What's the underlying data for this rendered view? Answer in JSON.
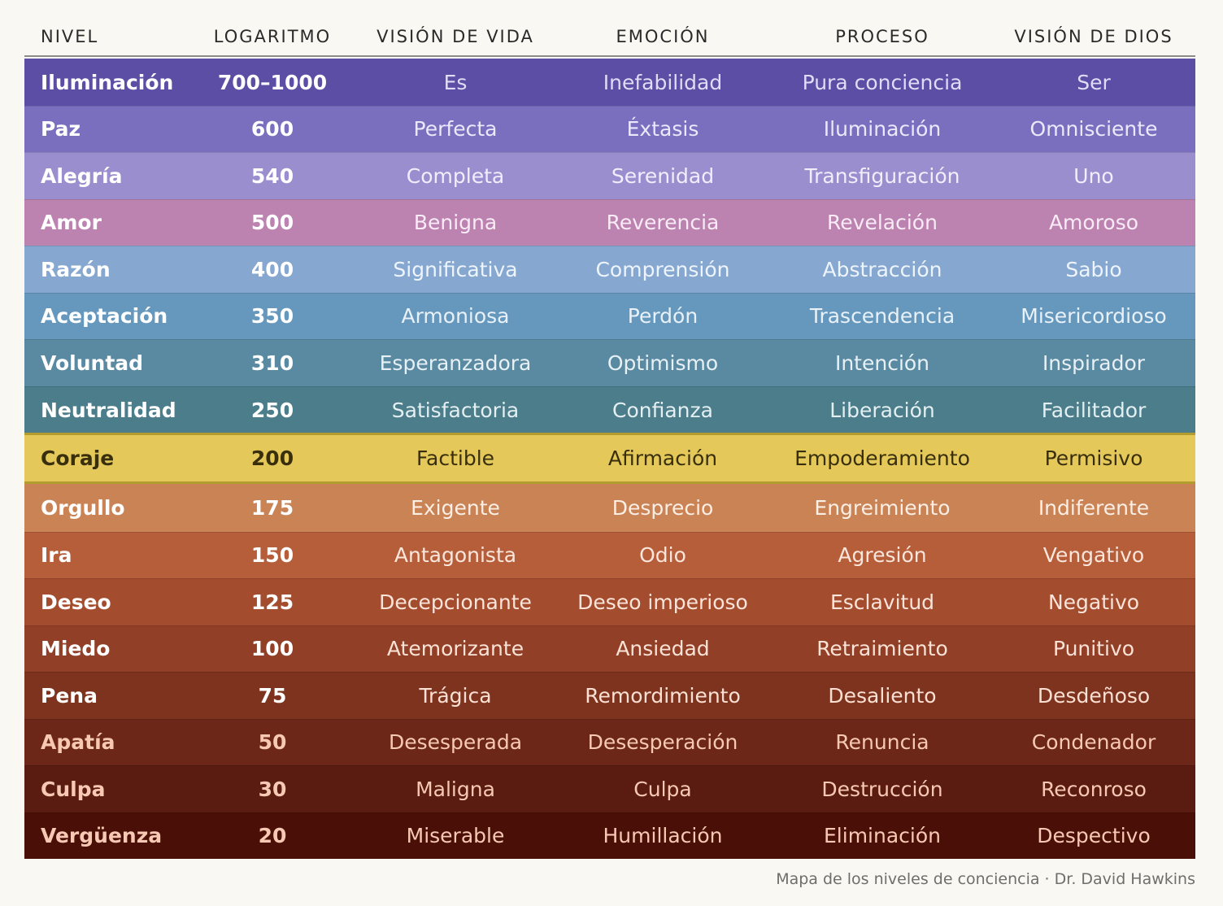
{
  "chart_data": {
    "type": "table",
    "columns": [
      "NIVEL",
      "LOGARITMO",
      "VISIÓN DE VIDA",
      "EMOCIÓN",
      "PROCESO",
      "VISIÓN DE DIOS"
    ],
    "rows": [
      {
        "nivel": "Iluminación",
        "logaritmo": "700–1000",
        "vision_vida": "Es",
        "emocion": "Inefabilidad",
        "proceso": "Pura conciencia",
        "vision_dios": "Ser",
        "bg": "#5b4ea4",
        "fg": "#ffffff",
        "fg2": "#e0dcf6"
      },
      {
        "nivel": "Paz",
        "logaritmo": "600",
        "vision_vida": "Perfecta",
        "emocion": "Éxtasis",
        "proceso": "Iluminación",
        "vision_dios": "Omnisciente",
        "bg": "#7a6fbf",
        "fg": "#ffffff",
        "fg2": "#ebe8fb"
      },
      {
        "nivel": "Alegría",
        "logaritmo": "540",
        "vision_vida": "Completa",
        "emocion": "Serenidad",
        "proceso": "Transfiguración",
        "vision_dios": "Uno",
        "bg": "#9a8ecf",
        "fg": "#ffffff",
        "fg2": "#f1eefc"
      },
      {
        "nivel": "Amor",
        "logaritmo": "500",
        "vision_vida": "Benigna",
        "emocion": "Reverencia",
        "proceso": "Revelación",
        "vision_dios": "Amoroso",
        "bg": "#bc82b0",
        "fg": "#ffffff",
        "fg2": "#f8ebf5"
      },
      {
        "nivel": "Razón",
        "logaritmo": "400",
        "vision_vida": "Significativa",
        "emocion": "Comprensión",
        "proceso": "Abstracción",
        "vision_dios": "Sabio",
        "bg": "#86a8d0",
        "fg": "#ffffff",
        "fg2": "#eef4fb"
      },
      {
        "nivel": "Aceptación",
        "logaritmo": "350",
        "vision_vida": "Armoniosa",
        "emocion": "Perdón",
        "proceso": "Trascendencia",
        "vision_dios": "Misericordioso",
        "bg": "#6698bd",
        "fg": "#ffffff",
        "fg2": "#e8f1f8"
      },
      {
        "nivel": "Voluntad",
        "logaritmo": "310",
        "vision_vida": "Esperanzadora",
        "emocion": "Optimismo",
        "proceso": "Intención",
        "vision_dios": "Inspirador",
        "bg": "#5a8aa2",
        "fg": "#ffffff",
        "fg2": "#e6f0f5"
      },
      {
        "nivel": "Neutralidad",
        "logaritmo": "250",
        "vision_vida": "Satisfactoria",
        "emocion": "Confianza",
        "proceso": "Liberación",
        "vision_dios": "Facilitador",
        "bg": "#4b7d8a",
        "fg": "#ffffff",
        "fg2": "#e4eff2"
      },
      {
        "nivel": "Coraje",
        "logaritmo": "200",
        "vision_vida": "Factible",
        "emocion": "Afirmación",
        "proceso": "Empoderamiento",
        "vision_dios": "Permisivo",
        "bg": "#e4c95a",
        "fg": "#3a2f0c",
        "fg2": "#3a2f0c"
      },
      {
        "nivel": "Orgullo",
        "logaritmo": "175",
        "vision_vida": "Exigente",
        "emocion": "Desprecio",
        "proceso": "Engreimiento",
        "vision_dios": "Indiferente",
        "bg": "#c98355",
        "fg": "#ffffff",
        "fg2": "#fbeee4"
      },
      {
        "nivel": "Ira",
        "logaritmo": "150",
        "vision_vida": "Antagonista",
        "emocion": "Odio",
        "proceso": "Agresión",
        "vision_dios": "Vengativo",
        "bg": "#b65d3a",
        "fg": "#ffffff",
        "fg2": "#fbe6dc"
      },
      {
        "nivel": "Deseo",
        "logaritmo": "125",
        "vision_vida": "Decepcionante",
        "emocion": "Deseo imperioso",
        "proceso": "Esclavitud",
        "vision_dios": "Negativo",
        "bg": "#a44c2e",
        "fg": "#ffffff",
        "fg2": "#fbe4da"
      },
      {
        "nivel": "Miedo",
        "logaritmo": "100",
        "vision_vida": "Atemorizante",
        "emocion": "Ansiedad",
        "proceso": "Retraimiento",
        "vision_dios": "Punitivo",
        "bg": "#913f26",
        "fg": "#ffffff",
        "fg2": "#fbe2d6"
      },
      {
        "nivel": "Pena",
        "logaritmo": "75",
        "vision_vida": "Trágica",
        "emocion": "Remordimiento",
        "proceso": "Desaliento",
        "vision_dios": "Desdeñoso",
        "bg": "#7d331e",
        "fg": "#ffffff",
        "fg2": "#fbe0d3"
      },
      {
        "nivel": "Apatía",
        "logaritmo": "50",
        "vision_vida": "Desesperada",
        "emocion": "Desesperación",
        "proceso": "Renuncia",
        "vision_dios": "Condenador",
        "bg": "#6d2718",
        "fg": "#f7c9b4",
        "fg2": "#f7c9b4"
      },
      {
        "nivel": "Culpa",
        "logaritmo": "30",
        "vision_vida": "Maligna",
        "emocion": "Culpa",
        "proceso": "Destrucción",
        "vision_dios": "Reconroso",
        "bg": "#5a1c10",
        "fg": "#f7c9b4",
        "fg2": "#f7c9b4"
      },
      {
        "nivel": "Vergüenza",
        "logaritmo": "20",
        "vision_vida": "Miserable",
        "emocion": "Humillación",
        "proceso": "Eliminación",
        "vision_dios": "Despectivo",
        "bg": "#4a0f06",
        "fg": "#f7c9b4",
        "fg2": "#f7c9b4"
      }
    ]
  },
  "caption": "Mapa de los niveles de conciencia · Dr. David Hawkins"
}
